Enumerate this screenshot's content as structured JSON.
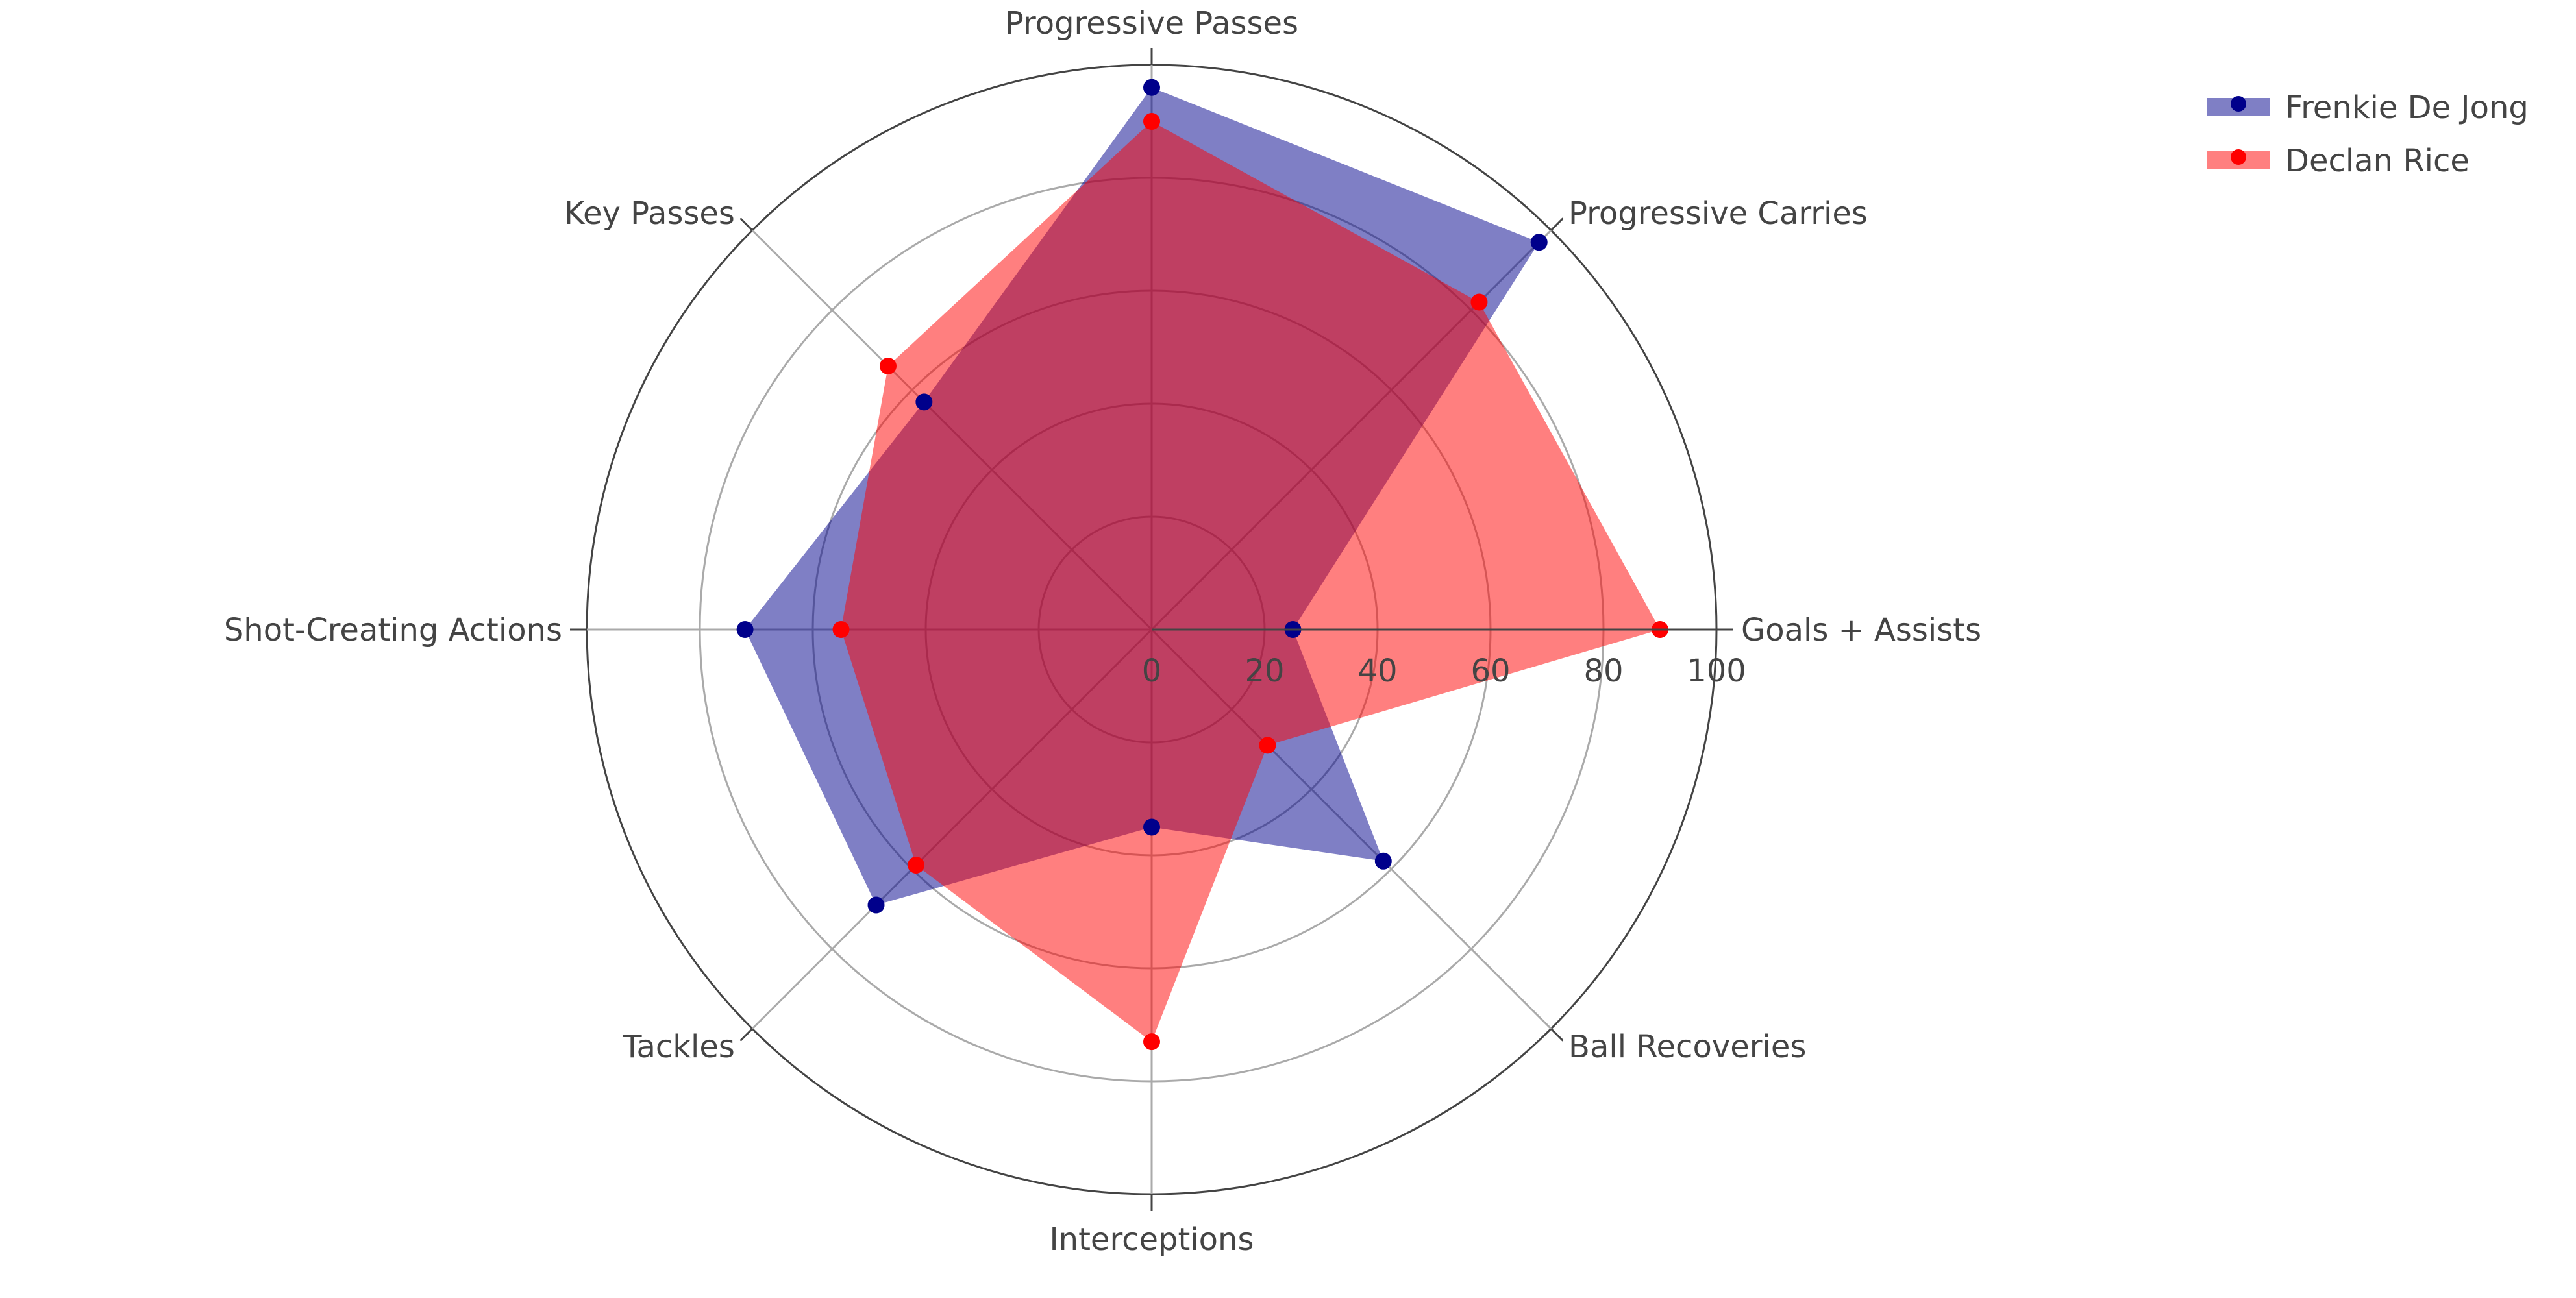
{
  "chart_data": {
    "type": "radar",
    "categories": [
      "Goals + Assists",
      "Progressive Carries",
      "Progressive Passes",
      "Key Passes",
      "Shot-Creating Actions",
      "Tackles",
      "Interceptions",
      "Ball Recoveries"
    ],
    "series": [
      {
        "name": "Frenkie De Jong",
        "values": [
          25,
          97,
          96,
          57,
          72,
          69,
          35,
          58
        ],
        "color": "#00008b",
        "fill": "#00008b",
        "fill_opacity": 0.5
      },
      {
        "name": "Declan Rice",
        "values": [
          90,
          82,
          90,
          66,
          55,
          59,
          73,
          29
        ],
        "color": "#ff0000",
        "fill": "#ff0000",
        "fill_opacity": 0.5
      }
    ],
    "radial_range": [
      0,
      100
    ],
    "radial_ticks": [
      "0",
      "20",
      "40",
      "60",
      "80",
      "100"
    ],
    "radial_tick_values": [
      0,
      20,
      40,
      60,
      80,
      100
    ],
    "grid": true,
    "legend_position": "top-right"
  }
}
